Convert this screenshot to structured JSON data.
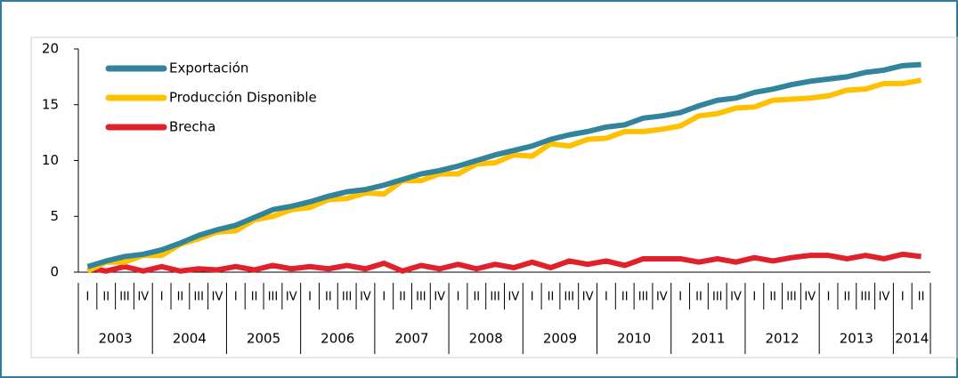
{
  "chart_data": {
    "type": "line",
    "categories": [
      "I",
      "II",
      "III",
      "IV",
      "I",
      "II",
      "III",
      "IV",
      "I",
      "II",
      "III",
      "IV",
      "I",
      "II",
      "III",
      "IV",
      "I",
      "II",
      "III",
      "IV",
      "I",
      "II",
      "III",
      "IV",
      "I",
      "II",
      "III",
      "IV",
      "I",
      "II",
      "III",
      "IV",
      "I",
      "II",
      "III",
      "IV",
      "I",
      "II",
      "III",
      "IV",
      "I",
      "II",
      "III",
      "IV",
      "I",
      "II"
    ],
    "years": [
      "2003",
      "2004",
      "2005",
      "2006",
      "2007",
      "2008",
      "2009",
      "2010",
      "2011",
      "2012",
      "2013",
      "2014"
    ],
    "ylim": [
      0,
      20
    ],
    "yticks": [
      0,
      5,
      10,
      15,
      20
    ],
    "grid": false,
    "legend": "top-left",
    "series": [
      {
        "name": "Exportación",
        "color": "#31849b",
        "values": [
          0.5,
          1.0,
          1.4,
          1.6,
          2.0,
          2.6,
          3.3,
          3.8,
          4.2,
          4.9,
          5.6,
          5.9,
          6.3,
          6.8,
          7.2,
          7.4,
          7.8,
          8.3,
          8.8,
          9.1,
          9.5,
          10.0,
          10.5,
          10.9,
          11.3,
          11.9,
          12.3,
          12.6,
          13.0,
          13.2,
          13.8,
          14.0,
          14.3,
          14.9,
          15.4,
          15.6,
          16.1,
          16.4,
          16.8,
          17.1,
          17.3,
          17.5,
          17.9,
          18.1,
          18.5,
          18.6
        ]
      },
      {
        "name": "Producción Disponible",
        "color": "#ffc000",
        "values": [
          0.1,
          0.9,
          0.9,
          1.5,
          1.5,
          2.5,
          3.0,
          3.6,
          3.7,
          4.7,
          5.0,
          5.6,
          5.8,
          6.5,
          6.6,
          7.1,
          7.0,
          8.2,
          8.2,
          8.8,
          8.8,
          9.7,
          9.8,
          10.5,
          10.4,
          11.5,
          11.3,
          11.9,
          12.0,
          12.6,
          12.6,
          12.8,
          13.1,
          14.0,
          14.2,
          14.7,
          14.8,
          15.4,
          15.5,
          15.6,
          15.8,
          16.3,
          16.4,
          16.9,
          16.9,
          17.2
        ]
      },
      {
        "name": "Brecha",
        "color": "#e0202a",
        "values": [
          0.4,
          0.1,
          0.5,
          0.1,
          0.5,
          0.1,
          0.3,
          0.2,
          0.5,
          0.2,
          0.6,
          0.3,
          0.5,
          0.3,
          0.6,
          0.3,
          0.8,
          0.1,
          0.6,
          0.3,
          0.7,
          0.3,
          0.7,
          0.4,
          0.9,
          0.4,
          1.0,
          0.7,
          1.0,
          0.6,
          1.2,
          1.2,
          1.2,
          0.9,
          1.2,
          0.9,
          1.3,
          1.0,
          1.3,
          1.5,
          1.5,
          1.2,
          1.5,
          1.2,
          1.6,
          1.4
        ]
      }
    ]
  }
}
